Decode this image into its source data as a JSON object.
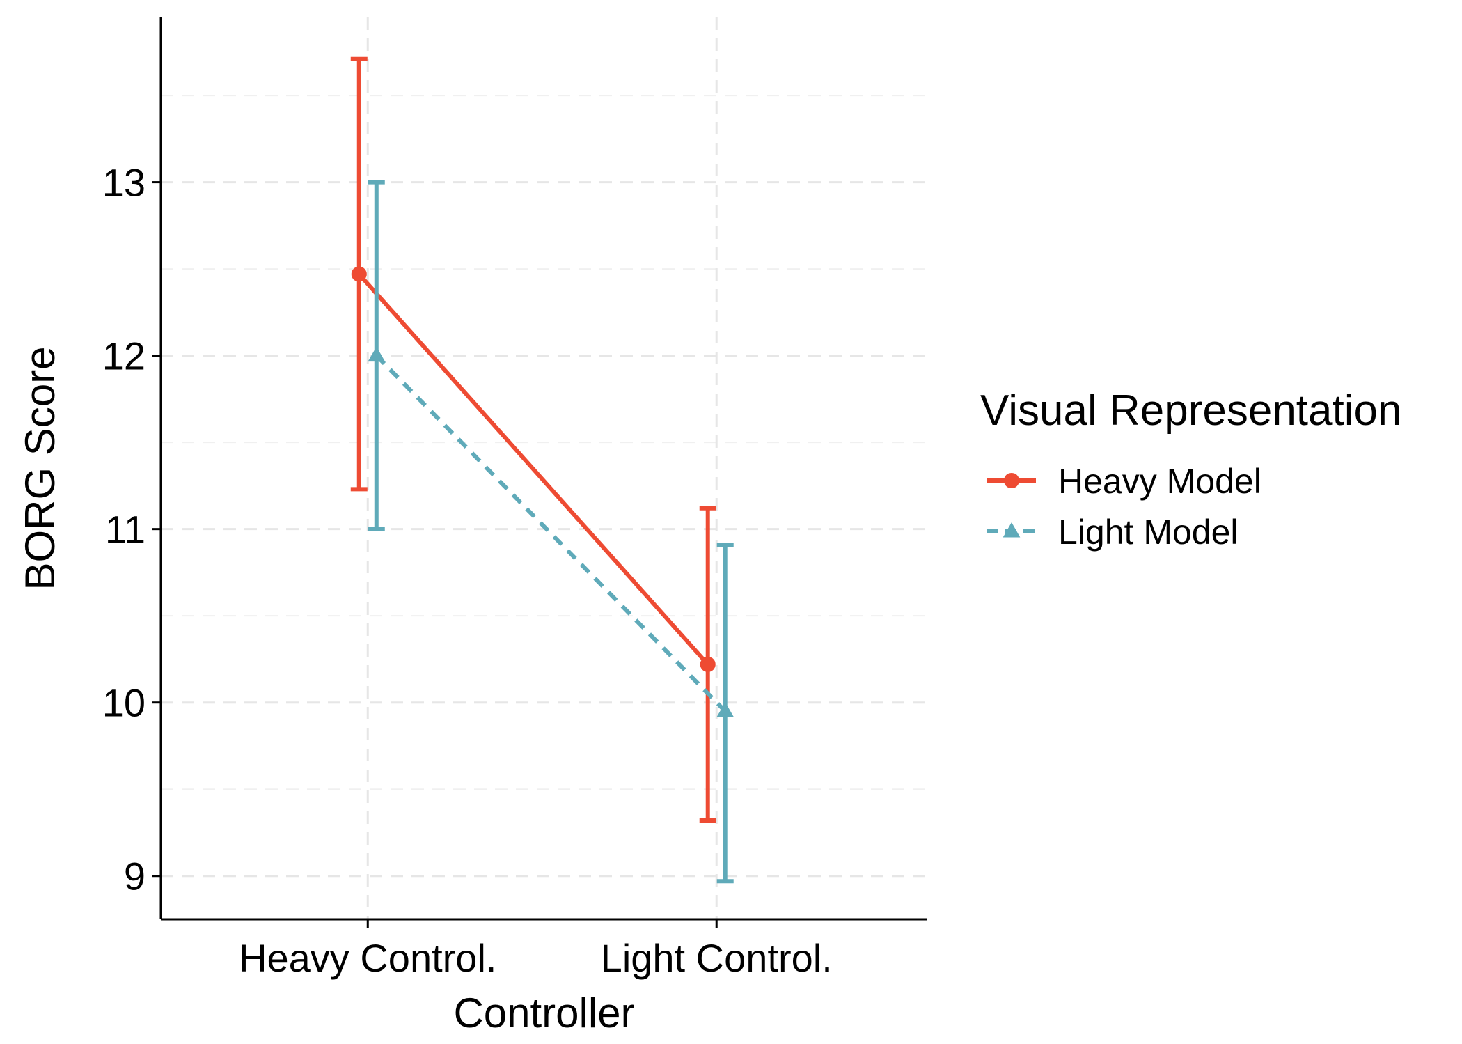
{
  "chart_data": {
    "type": "line",
    "xlabel": "Controller",
    "ylabel": "BORG Score",
    "categories": [
      "Heavy Control.",
      "Light Control."
    ],
    "ylim": [
      8.75,
      13.95
    ],
    "yticks": [
      9,
      10,
      11,
      12,
      13
    ],
    "grid": true,
    "legend": {
      "title": "Visual Representation",
      "placement": "right"
    },
    "series": [
      {
        "name": "Heavy Model",
        "color": "#EE4B33",
        "marker": "circle",
        "line_style": "solid",
        "values": [
          12.47,
          10.22
        ],
        "error_low": [
          11.23,
          9.32
        ],
        "error_high": [
          13.71,
          11.12
        ]
      },
      {
        "name": "Light Model",
        "color": "#5FAAB9",
        "marker": "triangle",
        "line_style": "dashed",
        "values": [
          12.0,
          9.95
        ],
        "error_low": [
          11.0,
          8.97
        ],
        "error_high": [
          13.0,
          10.91
        ]
      }
    ]
  }
}
